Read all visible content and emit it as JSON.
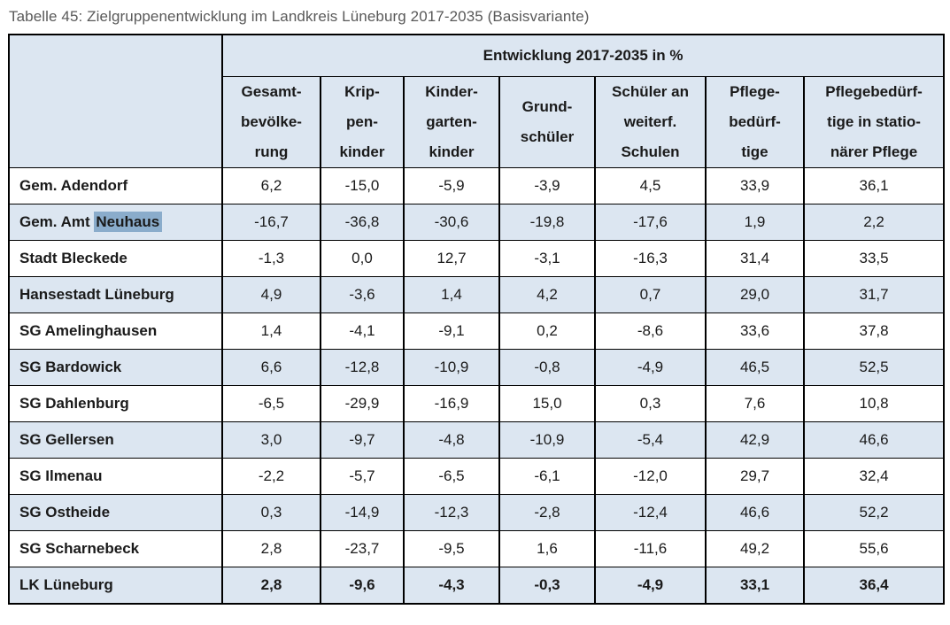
{
  "title": "Tabelle 45: Zielgruppenentwicklung im Landkreis Lüneburg 2017-2035 (Basisvariante)",
  "table": {
    "group_header": "Entwicklung 2017-2035 in %",
    "corner_cell": "",
    "column_headers": [
      {
        "label": "Gesamtbevölkerung",
        "lines": [
          "Gesamt-",
          "bevölke-",
          "rung"
        ]
      },
      {
        "label": "Krippenkinder",
        "lines": [
          "Krip-",
          "pen-",
          "kinder"
        ]
      },
      {
        "label": "Kindergartenkinder",
        "lines": [
          "Kinder-",
          "garten-",
          "kinder"
        ]
      },
      {
        "label": "Grundschüler",
        "lines": [
          "Grund-",
          "schüler"
        ]
      },
      {
        "label": "Schüler an weiterf. Schulen",
        "lines": [
          "Schüler an",
          "weiterf.",
          "Schulen"
        ]
      },
      {
        "label": "Pflegebedürftige",
        "lines": [
          "Pflege-",
          "bedürf-",
          "tige"
        ]
      },
      {
        "label": "Pflegebedürftige in stationärer Pflege",
        "lines": [
          "Pflegebedürf-",
          "tige in statio-",
          "närer Pflege"
        ]
      }
    ],
    "rows": [
      {
        "name": "Gem. Adendorf",
        "values": [
          "6,2",
          "-15,0",
          "-5,9",
          "-3,9",
          "4,5",
          "33,9",
          "36,1"
        ],
        "shaded": false,
        "bold_values": false
      },
      {
        "name": "Gem. Amt Neuhaus",
        "name_parts": {
          "prefix": "Gem. Amt ",
          "highlighted": "Neuhaus"
        },
        "values": [
          "-16,7",
          "-36,8",
          "-30,6",
          "-19,8",
          "-17,6",
          "1,9",
          "2,2"
        ],
        "shaded": true,
        "bold_values": false
      },
      {
        "name": "Stadt Bleckede",
        "values": [
          "-1,3",
          "0,0",
          "12,7",
          "-3,1",
          "-16,3",
          "31,4",
          "33,5"
        ],
        "shaded": false,
        "bold_values": false
      },
      {
        "name": "Hansestadt Lüneburg",
        "values": [
          "4,9",
          "-3,6",
          "1,4",
          "4,2",
          "0,7",
          "29,0",
          "31,7"
        ],
        "shaded": true,
        "bold_values": false
      },
      {
        "name": "SG Amelinghausen",
        "values": [
          "1,4",
          "-4,1",
          "-9,1",
          "0,2",
          "-8,6",
          "33,6",
          "37,8"
        ],
        "shaded": false,
        "bold_values": false
      },
      {
        "name": "SG Bardowick",
        "values": [
          "6,6",
          "-12,8",
          "-10,9",
          "-0,8",
          "-4,9",
          "46,5",
          "52,5"
        ],
        "shaded": true,
        "bold_values": false
      },
      {
        "name": "SG Dahlenburg",
        "values": [
          "-6,5",
          "-29,9",
          "-16,9",
          "15,0",
          "0,3",
          "7,6",
          "10,8"
        ],
        "shaded": false,
        "bold_values": false
      },
      {
        "name": "SG Gellersen",
        "values": [
          "3,0",
          "-9,7",
          "-4,8",
          "-10,9",
          "-5,4",
          "42,9",
          "46,6"
        ],
        "shaded": true,
        "bold_values": false
      },
      {
        "name": "SG Ilmenau",
        "values": [
          "-2,2",
          "-5,7",
          "-6,5",
          "-6,1",
          "-12,0",
          "29,7",
          "32,4"
        ],
        "shaded": false,
        "bold_values": false
      },
      {
        "name": "SG Ostheide",
        "values": [
          "0,3",
          "-14,9",
          "-12,3",
          "-2,8",
          "-12,4",
          "46,6",
          "52,2"
        ],
        "shaded": true,
        "bold_values": false
      },
      {
        "name": "SG Scharnebeck",
        "values": [
          "2,8",
          "-23,7",
          "-9,5",
          "1,6",
          "-11,6",
          "49,2",
          "55,6"
        ],
        "shaded": false,
        "bold_values": false
      },
      {
        "name": "LK Lüneburg",
        "values": [
          "2,8",
          "-9,6",
          "-4,3",
          "-0,3",
          "-4,9",
          "33,1",
          "36,4"
        ],
        "shaded": true,
        "bold_values": true
      }
    ]
  },
  "colors": {
    "shaded_row_bg": "#DCE6F1",
    "word_highlight_bg": "#8AACCB",
    "border": "#000000",
    "title_text": "#595959",
    "cell_text": "#1A1A1A"
  }
}
